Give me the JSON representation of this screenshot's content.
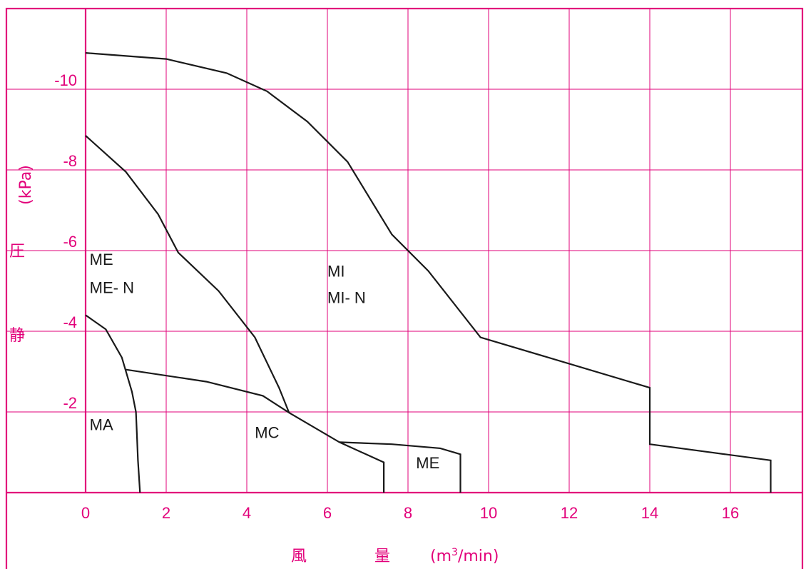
{
  "chart_data": {
    "type": "line",
    "xlabel": {
      "parts": [
        "風",
        "量",
        "(m3/min)"
      ],
      "unit_main": "(m",
      "unit_sup": "3",
      "unit_rest": "/min)"
    },
    "ylabel": {
      "parts": [
        "静",
        "圧",
        "(kPa)"
      ]
    },
    "xlim": [
      -2.0,
      18.0
    ],
    "ylim": [
      0,
      -12.0
    ],
    "x_ticks": [
      0,
      2,
      4,
      6,
      8,
      10,
      12,
      14,
      16
    ],
    "x_tick_labels": [
      "0",
      "2",
      "4",
      "6",
      "8",
      "10",
      "12",
      "14",
      "16"
    ],
    "y_ticks": [
      -2,
      -4,
      -6,
      -8,
      -10
    ],
    "y_tick_labels": [
      "-2",
      "-4",
      "-6",
      "-8",
      "-10"
    ],
    "x_grid": [
      2,
      4,
      6,
      8,
      10,
      12,
      14,
      16
    ],
    "y_grid": [
      -2,
      -4,
      -6,
      -8,
      -10
    ],
    "grid": true,
    "legend": "none",
    "series": [
      {
        "name": "MI / MI- N",
        "points": [
          [
            0,
            -10.9
          ],
          [
            2,
            -10.75
          ],
          [
            3.5,
            -10.4
          ],
          [
            4.5,
            -9.95
          ],
          [
            5.5,
            -9.2
          ],
          [
            6.5,
            -8.2
          ],
          [
            7.6,
            -6.4
          ],
          [
            8.5,
            -5.5
          ],
          [
            9.8,
            -3.85
          ],
          [
            14,
            -2.6
          ],
          [
            14,
            -1.2
          ],
          [
            17,
            -0.8
          ],
          [
            17,
            0
          ]
        ]
      },
      {
        "name": "ME / ME- N",
        "points": [
          [
            0,
            -8.85
          ],
          [
            1,
            -7.95
          ],
          [
            1.8,
            -6.9
          ],
          [
            2.3,
            -5.95
          ],
          [
            3.3,
            -5.0
          ],
          [
            4.2,
            -3.85
          ],
          [
            4.8,
            -2.6
          ],
          [
            5.05,
            -1.98
          ]
        ]
      },
      {
        "name": "MC",
        "points": [
          [
            1.0,
            -3.05
          ],
          [
            3.0,
            -2.75
          ],
          [
            4.4,
            -2.4
          ],
          [
            5.05,
            -1.98
          ],
          [
            6.3,
            -1.25
          ],
          [
            7.4,
            -0.75
          ],
          [
            7.4,
            0
          ]
        ]
      },
      {
        "name": "ME",
        "points": [
          [
            6.3,
            -1.25
          ],
          [
            7.6,
            -1.2
          ],
          [
            8.8,
            -1.1
          ],
          [
            9.3,
            -0.95
          ],
          [
            9.3,
            0
          ]
        ]
      },
      {
        "name": "MA",
        "points": [
          [
            0,
            -4.4
          ],
          [
            0.5,
            -4.05
          ],
          [
            0.9,
            -3.35
          ],
          [
            1.15,
            -2.5
          ],
          [
            1.25,
            -2.0
          ],
          [
            1.27,
            -1.5
          ],
          [
            1.3,
            -0.8
          ],
          [
            1.35,
            0
          ]
        ]
      }
    ],
    "annotations": [
      {
        "text": "MI",
        "x": 6.0,
        "y": -5.35
      },
      {
        "text": "MI- N",
        "x": 6.0,
        "y": -4.7
      },
      {
        "text": "ME",
        "x": 0.1,
        "y": -5.65
      },
      {
        "text": "ME- N",
        "x": 0.1,
        "y": -4.95
      },
      {
        "text": "MA",
        "x": 0.1,
        "y": -1.55
      },
      {
        "text": "MC",
        "x": 4.2,
        "y": -1.35
      },
      {
        "text": "ME",
        "x": 8.2,
        "y": -0.6
      }
    ]
  }
}
